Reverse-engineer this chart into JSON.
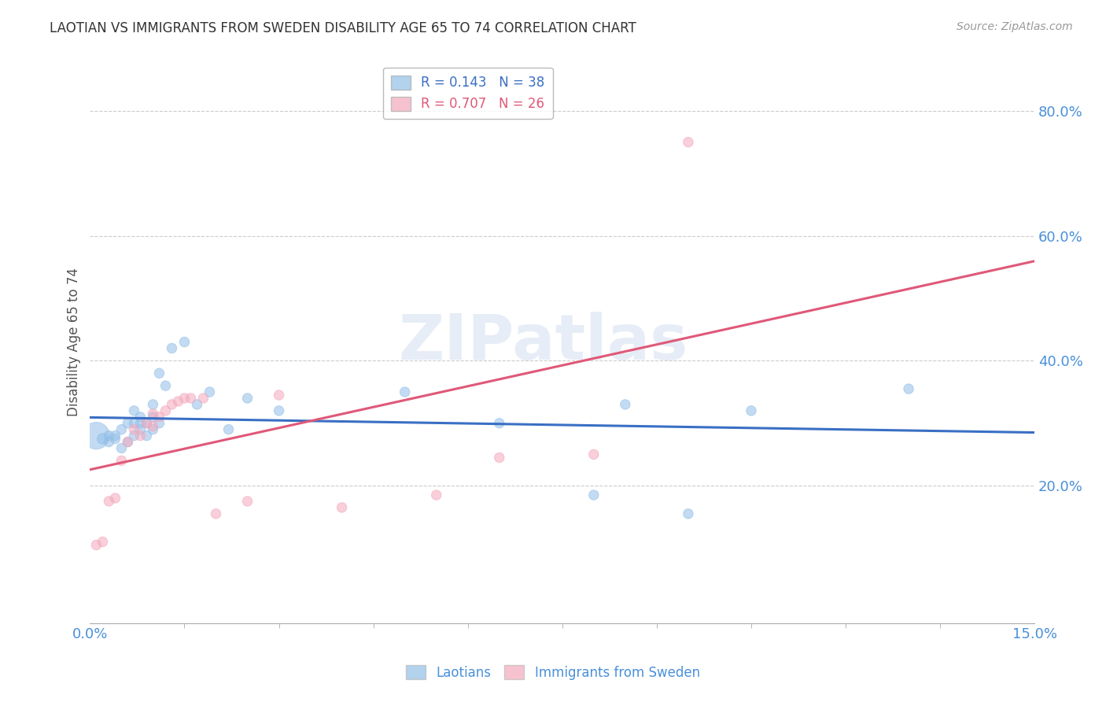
{
  "title": "LAOTIAN VS IMMIGRANTS FROM SWEDEN DISABILITY AGE 65 TO 74 CORRELATION CHART",
  "source": "Source: ZipAtlas.com",
  "ylabel": "Disability Age 65 to 74",
  "xlim": [
    0.0,
    0.15
  ],
  "ylim": [
    -0.02,
    0.88
  ],
  "xticks": [
    0.0,
    0.15
  ],
  "xticklabels": [
    "0.0%",
    "15.0%"
  ],
  "yticks": [
    0.2,
    0.4,
    0.6,
    0.8
  ],
  "yticklabels": [
    "20.0%",
    "40.0%",
    "60.0%",
    "80.0%"
  ],
  "watermark": "ZIPatlas",
  "legend_label_blue": "R = 0.143   N = 38",
  "legend_label_pink": "R = 0.707   N = 26",
  "blue_color": "#92bfe8",
  "pink_color": "#f4a8bc",
  "blue_line_color": "#3a6fc4",
  "pink_line_color": "#e05878",
  "background_color": "#ffffff",
  "grid_color": "#cccccc",
  "laotian_x": [
    0.001,
    0.002,
    0.003,
    0.003,
    0.004,
    0.004,
    0.005,
    0.005,
    0.006,
    0.006,
    0.007,
    0.007,
    0.007,
    0.008,
    0.008,
    0.008,
    0.009,
    0.009,
    0.01,
    0.01,
    0.01,
    0.011,
    0.011,
    0.012,
    0.013,
    0.015,
    0.017,
    0.019,
    0.022,
    0.025,
    0.03,
    0.05,
    0.065,
    0.08,
    0.085,
    0.095,
    0.105,
    0.13
  ],
  "laotian_y": [
    0.28,
    0.275,
    0.27,
    0.28,
    0.275,
    0.28,
    0.26,
    0.29,
    0.27,
    0.3,
    0.28,
    0.3,
    0.32,
    0.29,
    0.31,
    0.3,
    0.28,
    0.3,
    0.29,
    0.31,
    0.33,
    0.3,
    0.38,
    0.36,
    0.42,
    0.43,
    0.33,
    0.35,
    0.29,
    0.34,
    0.32,
    0.35,
    0.3,
    0.185,
    0.33,
    0.155,
    0.32,
    0.355
  ],
  "laotian_size": [
    600,
    100,
    80,
    80,
    80,
    80,
    80,
    80,
    80,
    80,
    80,
    80,
    80,
    80,
    80,
    80,
    80,
    80,
    80,
    80,
    80,
    80,
    80,
    80,
    80,
    80,
    80,
    80,
    80,
    80,
    80,
    80,
    80,
    80,
    80,
    80,
    80,
    80
  ],
  "sweden_x": [
    0.001,
    0.002,
    0.003,
    0.004,
    0.005,
    0.006,
    0.007,
    0.008,
    0.009,
    0.01,
    0.01,
    0.011,
    0.012,
    0.013,
    0.014,
    0.015,
    0.016,
    0.018,
    0.02,
    0.025,
    0.03,
    0.04,
    0.055,
    0.065,
    0.08,
    0.095
  ],
  "sweden_y": [
    0.105,
    0.11,
    0.175,
    0.18,
    0.24,
    0.27,
    0.29,
    0.28,
    0.3,
    0.295,
    0.315,
    0.31,
    0.32,
    0.33,
    0.335,
    0.34,
    0.34,
    0.34,
    0.155,
    0.175,
    0.345,
    0.165,
    0.185,
    0.245,
    0.25,
    0.75
  ],
  "sweden_size": [
    80,
    80,
    80,
    80,
    80,
    80,
    80,
    80,
    80,
    80,
    80,
    80,
    80,
    80,
    80,
    80,
    80,
    80,
    80,
    80,
    80,
    80,
    80,
    80,
    80,
    80
  ]
}
